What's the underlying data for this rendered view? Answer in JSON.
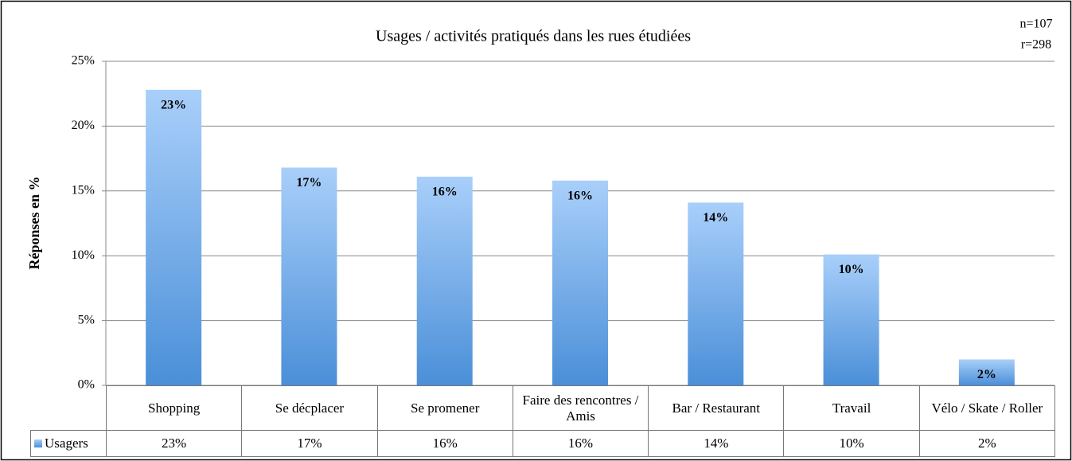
{
  "chart_data": {
    "type": "bar",
    "title": "Usages / activités pratiqués dans les rues étudiées",
    "annotations": [
      "n=107",
      "r=298"
    ],
    "y_label": "Réponses en %",
    "categories": [
      "Shopping",
      "Se décplacer",
      "Se promener",
      "Faire des rencontres / Amis",
      "Bar / Restaurant",
      "Travail",
      "Vélo / Skate / Roller"
    ],
    "series": [
      {
        "name": "Usagers",
        "color": "#4a8fd8",
        "values": [
          22.8,
          16.8,
          16.1,
          15.8,
          14.1,
          10.1,
          2.0
        ],
        "value_labels": [
          "23%",
          "17%",
          "16%",
          "16%",
          "14%",
          "10%",
          "2%"
        ]
      }
    ],
    "ylim": [
      0,
      25
    ],
    "yticks": [
      {
        "value": 0,
        "label": "0%"
      },
      {
        "value": 5,
        "label": "5%"
      },
      {
        "value": 10,
        "label": "10%"
      },
      {
        "value": 15,
        "label": "15%"
      },
      {
        "value": 20,
        "label": "20%"
      },
      {
        "value": 25,
        "label": "25%"
      }
    ],
    "grid": true
  }
}
